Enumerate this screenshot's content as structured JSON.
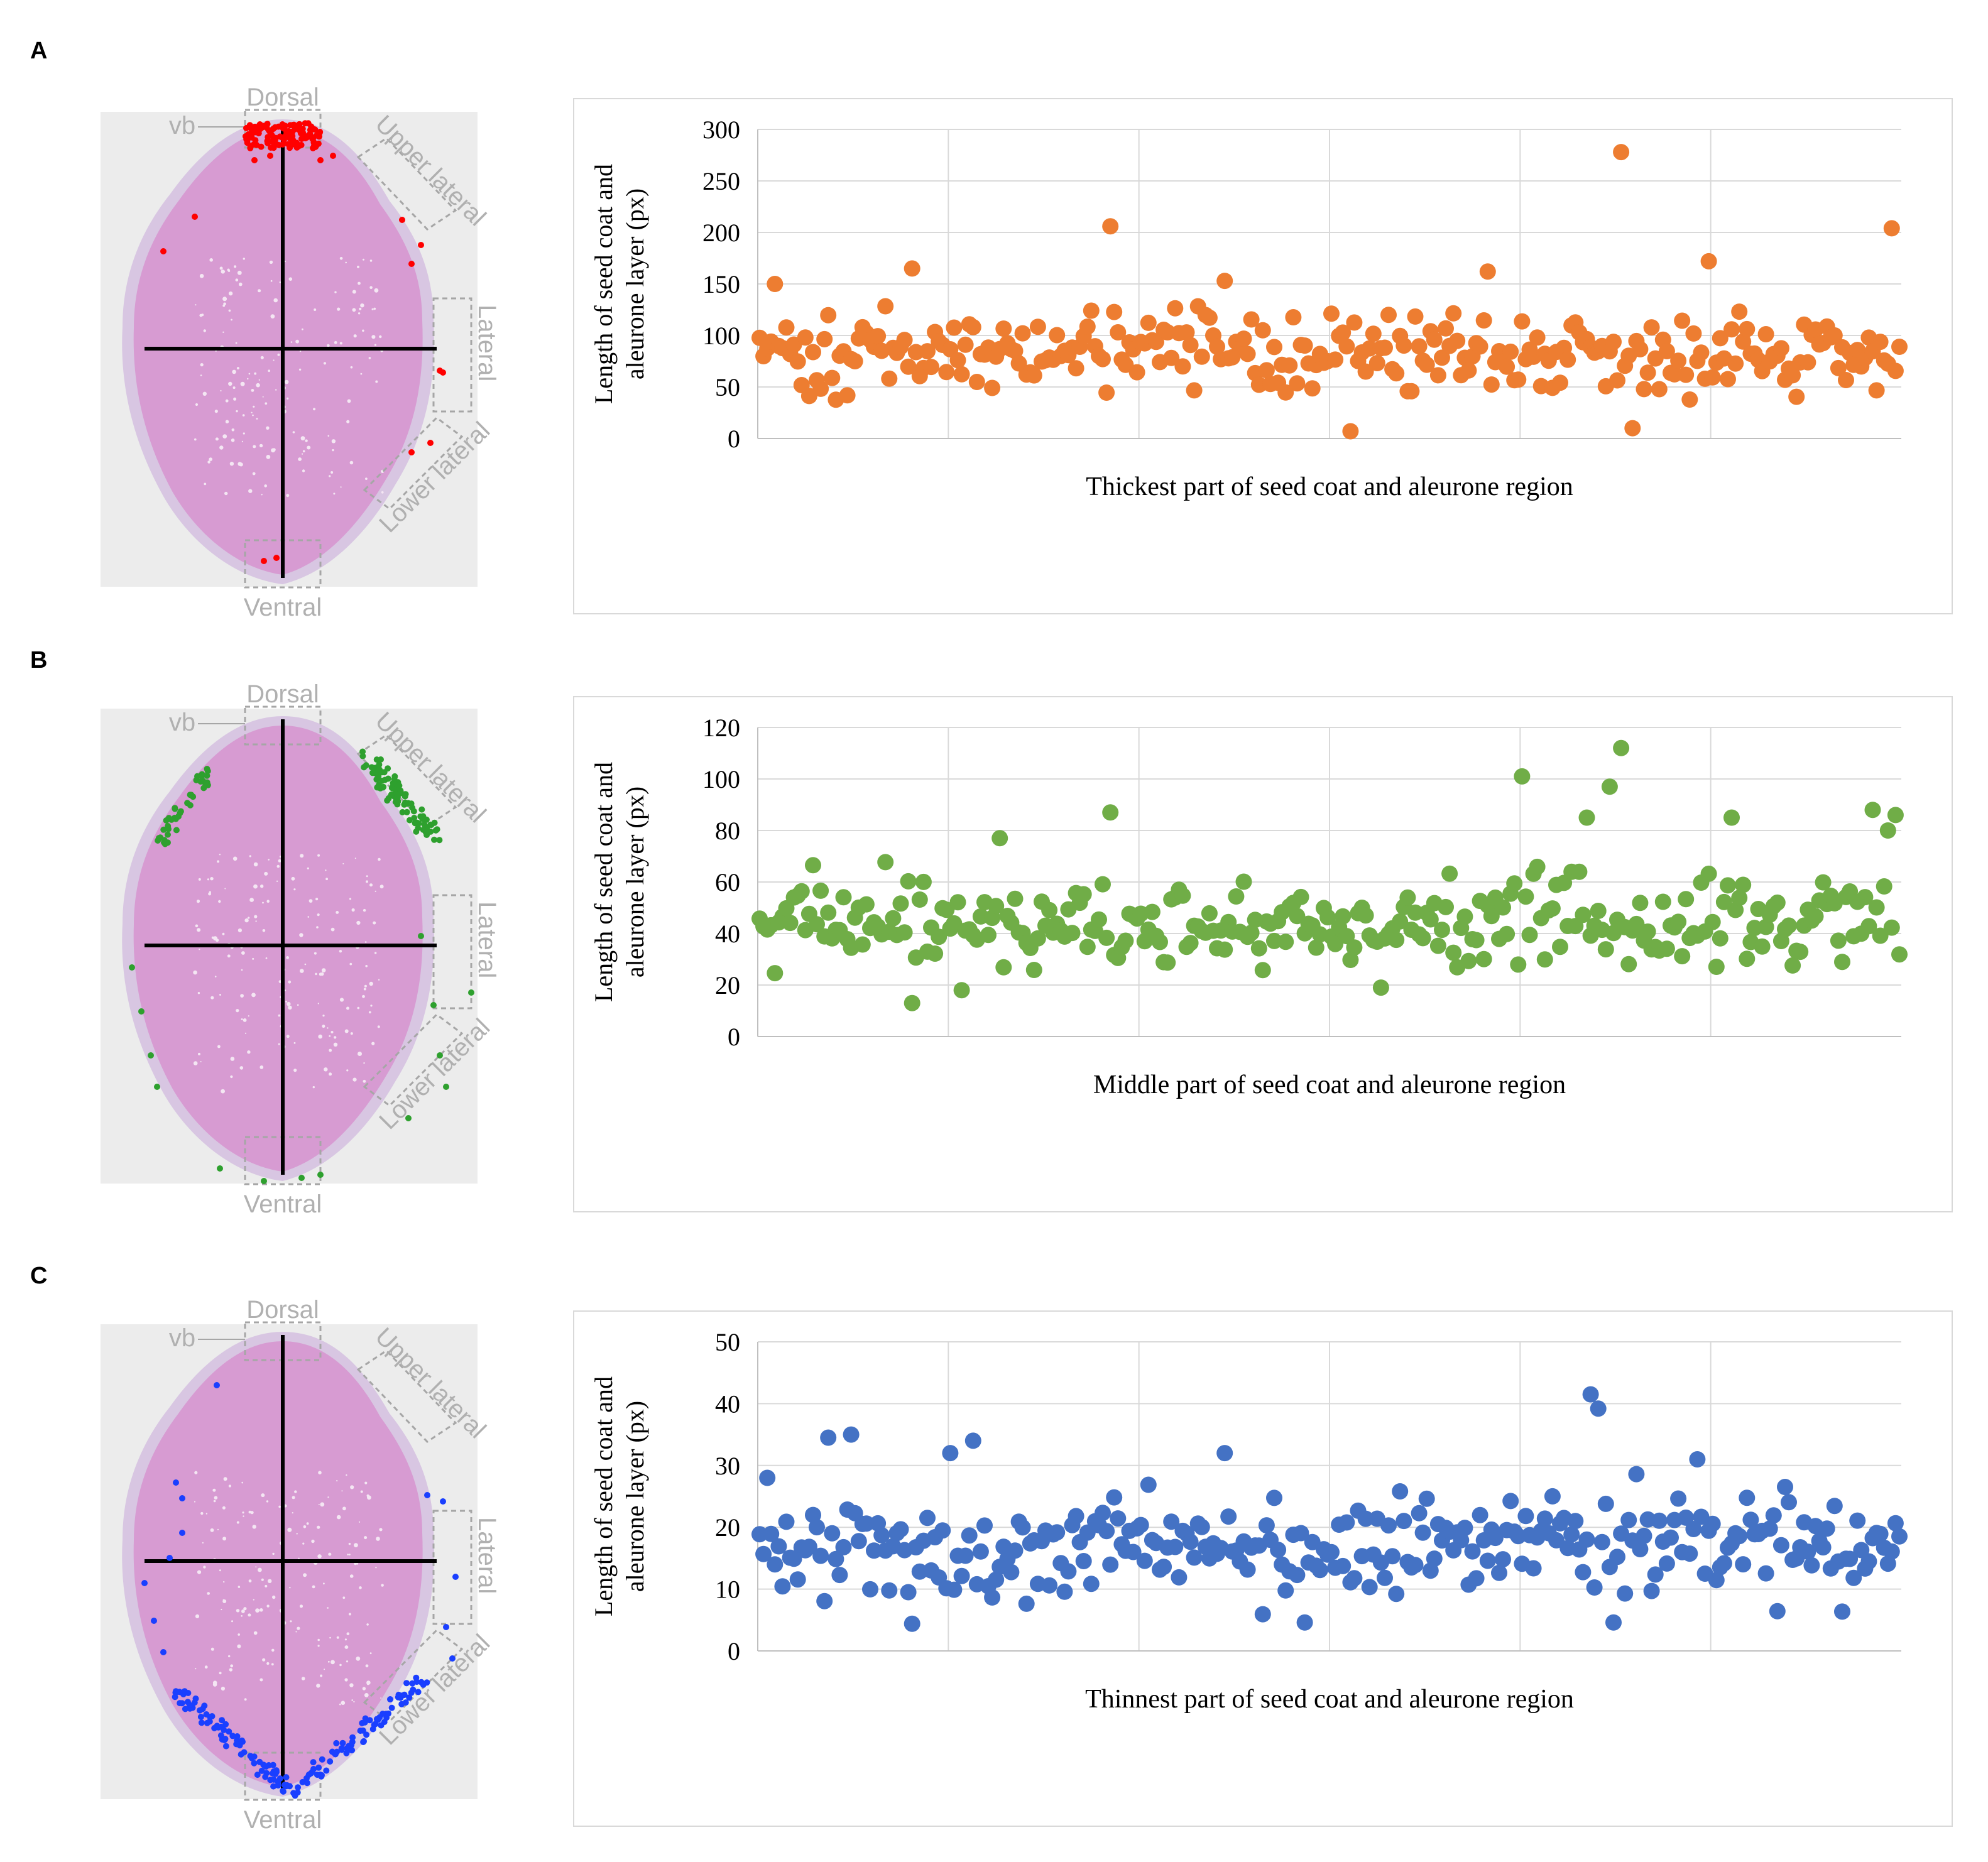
{
  "panels": [
    {
      "letter": "A",
      "seed_color": "#ff0000",
      "marker_region": "dorsal"
    },
    {
      "letter": "B",
      "seed_color": "#2ea02e",
      "marker_region": "upper-lateral"
    },
    {
      "letter": "C",
      "seed_color": "#1a3fff",
      "marker_region": "lower-lateral"
    }
  ],
  "seed_labels": {
    "dorsal": "Dorsal",
    "vb": "vb",
    "upper_lateral": "Upper lateral",
    "lateral": "Lateral",
    "lower_lateral": "Lower lateral",
    "ventral": "Ventral"
  },
  "colors": {
    "A": "#ed7d31",
    "B": "#70ad47",
    "C": "#4472c4",
    "grid": "#d9d9d9",
    "axis": "#bfbfbf"
  },
  "chart_data": [
    {
      "type": "scatter",
      "panel": "A",
      "xlabel": "Thickest part of seed coat and aleurone region",
      "ylabel": "Length of seed coat and aleurone layer (px)",
      "ylim": [
        0,
        300
      ],
      "yticks": [
        0,
        50,
        100,
        150,
        200,
        250,
        300
      ],
      "xlim": [
        0,
        300
      ],
      "vgrid": [
        50,
        100,
        150,
        200,
        250
      ],
      "n_points": 300,
      "base": 84,
      "spread": 24,
      "seed": 11,
      "outliers": [
        [
          92,
          206
        ],
        [
          226,
          278
        ],
        [
          297,
          204
        ],
        [
          155,
          7
        ],
        [
          229,
          10
        ],
        [
          249,
          172
        ],
        [
          4,
          150
        ],
        [
          40,
          165
        ],
        [
          122,
          153
        ],
        [
          191,
          162
        ]
      ]
    },
    {
      "type": "scatter",
      "panel": "B",
      "xlabel": "Middle part of seed coat and aleurone region",
      "ylabel": "Length of seed coat and aleurone layer (px)",
      "ylim": [
        0,
        120
      ],
      "yticks": [
        0,
        20,
        40,
        60,
        80,
        100,
        120
      ],
      "xlim": [
        0,
        300
      ],
      "vgrid": [
        50,
        100,
        150,
        200,
        250
      ],
      "n_points": 300,
      "base": 44,
      "spread": 11,
      "seed": 23,
      "outliers": [
        [
          226,
          112
        ],
        [
          200,
          101
        ],
        [
          223,
          97
        ],
        [
          92,
          87
        ],
        [
          292,
          88
        ],
        [
          298,
          86
        ],
        [
          217,
          85
        ],
        [
          255,
          85
        ],
        [
          296,
          80
        ],
        [
          40,
          13
        ],
        [
          63,
          77
        ],
        [
          53,
          18
        ],
        [
          163,
          19
        ]
      ]
    },
    {
      "type": "scatter",
      "panel": "C",
      "xlabel": "Thinnest part of seed coat and aleurone region",
      "ylabel": "Length of seed coat and aleurone layer (px)",
      "ylim": [
        0,
        50
      ],
      "yticks": [
        0,
        10,
        20,
        30,
        40,
        50
      ],
      "xlim": [
        0,
        300
      ],
      "vgrid": [
        50,
        100,
        150,
        200,
        250
      ],
      "n_points": 300,
      "base": 16,
      "spread": 5.5,
      "seed": 37,
      "outliers": [
        [
          218,
          41.5
        ],
        [
          220,
          39.2
        ],
        [
          24,
          35
        ],
        [
          18,
          34.5
        ],
        [
          50,
          32
        ],
        [
          56,
          34
        ],
        [
          122,
          32
        ],
        [
          246,
          31
        ],
        [
          2,
          28
        ],
        [
          230,
          28.6
        ],
        [
          40,
          4.4
        ],
        [
          143,
          4.6
        ],
        [
          224,
          4.6
        ]
      ]
    }
  ]
}
